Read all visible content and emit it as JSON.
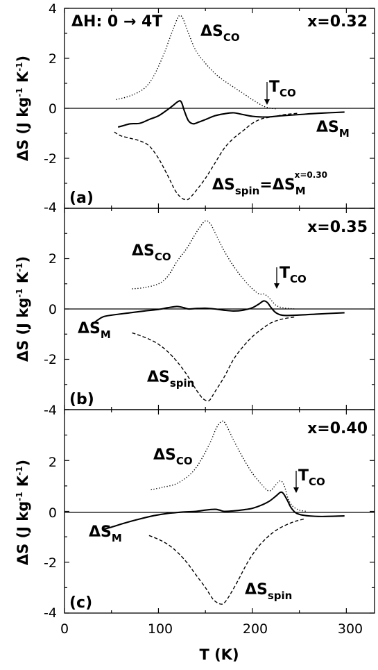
{
  "chart_data": [
    {
      "type": "line",
      "panel_label": "(a)",
      "composition": "x=0.32",
      "annotation": "ΔH: 0 → 4T",
      "xlim": [
        0,
        330
      ],
      "ylim": [
        -4,
        4
      ],
      "yticks": [
        4,
        2,
        0,
        -2,
        -4
      ],
      "ylabel": {
        "main": "ΔS (J kg",
        "exp1": "-1",
        "mid": " K",
        "exp2": "-1",
        "end": ")"
      },
      "series": [
        {
          "name": "ΔS_CO",
          "style": "dotted",
          "x": [
            55,
            70,
            85,
            95,
            105,
            112,
            118,
            122,
            126,
            132,
            140,
            150,
            160,
            170,
            180,
            190,
            200,
            210,
            215,
            220,
            225
          ],
          "y": [
            0.35,
            0.5,
            0.8,
            1.3,
            2.1,
            2.8,
            3.4,
            3.7,
            3.6,
            3.0,
            2.3,
            1.8,
            1.4,
            1.1,
            0.85,
            0.6,
            0.35,
            0.12,
            0.04,
            0.0,
            -0.02
          ]
        },
        {
          "name": "ΔS_M",
          "style": "solid",
          "x": [
            57,
            62,
            70,
            80,
            90,
            100,
            108,
            115,
            120,
            123,
            125,
            128,
            132,
            137,
            143,
            150,
            160,
            170,
            180,
            190,
            200,
            215,
            230,
            250,
            270,
            298
          ],
          "y": [
            -0.75,
            -0.7,
            -0.62,
            -0.6,
            -0.45,
            -0.3,
            -0.1,
            0.1,
            0.25,
            0.3,
            0.2,
            -0.15,
            -0.5,
            -0.62,
            -0.55,
            -0.45,
            -0.3,
            -0.22,
            -0.18,
            -0.25,
            -0.32,
            -0.35,
            -0.3,
            -0.25,
            -0.2,
            -0.15
          ]
        },
        {
          "name": "ΔS_spin",
          "style": "dashed",
          "x": [
            53,
            60,
            70,
            80,
            90,
            100,
            110,
            118,
            125,
            130,
            133,
            140,
            150,
            160,
            170,
            180,
            190,
            200,
            210,
            220,
            235,
            248
          ],
          "y": [
            -0.95,
            -1.1,
            -1.2,
            -1.3,
            -1.5,
            -2.0,
            -2.7,
            -3.3,
            -3.6,
            -3.65,
            -3.6,
            -3.3,
            -2.8,
            -2.2,
            -1.6,
            -1.2,
            -0.9,
            -0.6,
            -0.42,
            -0.35,
            -0.25,
            -0.2
          ]
        }
      ],
      "labels": {
        "sco": {
          "base": "ΔS",
          "sub": "CO"
        },
        "tco": {
          "base": "T",
          "sub": "CO"
        },
        "sm": {
          "base": "ΔS",
          "sub": "M"
        },
        "spin": {
          "base": "ΔS",
          "sub": "spin",
          "eq": "=ΔS",
          "sub2": "M",
          "sup2": "x=0.30"
        }
      },
      "tco_x": 213
    },
    {
      "type": "line",
      "panel_label": "(b)",
      "composition": "x=0.35",
      "xlim": [
        0,
        330
      ],
      "ylim": [
        -4,
        4
      ],
      "yticks": [
        2,
        0,
        -2,
        -4
      ],
      "ylabel": {
        "main": "ΔS (J kg",
        "exp1": "-1",
        "mid": " K",
        "exp2": "-1",
        "end": ")"
      },
      "series": [
        {
          "name": "ΔS_CO",
          "style": "dotted",
          "x": [
            72,
            85,
            100,
            110,
            120,
            130,
            138,
            145,
            150,
            155,
            162,
            170,
            180,
            190,
            200,
            207,
            212,
            216,
            220,
            225,
            232,
            245
          ],
          "y": [
            0.8,
            0.85,
            1.0,
            1.3,
            1.9,
            2.4,
            2.9,
            3.3,
            3.5,
            3.4,
            2.9,
            2.3,
            1.7,
            1.2,
            0.8,
            0.6,
            0.6,
            0.5,
            0.35,
            0.15,
            0.05,
            0.0
          ]
        },
        {
          "name": "ΔS_M",
          "style": "solid",
          "x": [
            30,
            35,
            42,
            55,
            70,
            85,
            100,
            110,
            120,
            127,
            132,
            140,
            150,
            160,
            170,
            180,
            190,
            200,
            207,
            212,
            216,
            220,
            225,
            232,
            245,
            270,
            298
          ],
          "y": [
            -0.6,
            -0.45,
            -0.3,
            -0.22,
            -0.15,
            -0.08,
            -0.02,
            0.05,
            0.1,
            0.05,
            0.0,
            0.02,
            0.03,
            0.0,
            -0.05,
            -0.08,
            -0.05,
            0.05,
            0.2,
            0.32,
            0.25,
            0.05,
            -0.15,
            -0.25,
            -0.25,
            -0.2,
            -0.15
          ]
        },
        {
          "name": "ΔS_spin",
          "style": "dashed",
          "x": [
            72,
            80,
            90,
            100,
            110,
            120,
            130,
            140,
            147,
            152,
            155,
            160,
            170,
            180,
            190,
            200,
            210,
            220,
            232,
            245
          ],
          "y": [
            -0.95,
            -1.05,
            -1.2,
            -1.4,
            -1.7,
            -2.1,
            -2.6,
            -3.2,
            -3.55,
            -3.65,
            -3.6,
            -3.3,
            -2.7,
            -2.0,
            -1.5,
            -1.1,
            -0.8,
            -0.55,
            -0.4,
            -0.32
          ]
        }
      ],
      "labels": {
        "sco": {
          "base": "ΔS",
          "sub": "CO"
        },
        "tco": {
          "base": "T",
          "sub": "CO"
        },
        "sm": {
          "base": "ΔS",
          "sub": "M"
        },
        "spin": {
          "base": "ΔS",
          "sub": "spin"
        }
      },
      "tco_x": 225
    },
    {
      "type": "line",
      "panel_label": "(c)",
      "composition": "x=0.40",
      "xlim": [
        0,
        330
      ],
      "ylim": [
        -4,
        4
      ],
      "yticks": [
        2,
        0,
        -2,
        -4
      ],
      "ylabel": {
        "main": "ΔS (J kg",
        "exp1": "-1",
        "mid": " K",
        "exp2": "-1",
        "end": ")"
      },
      "xlabel": "T (K)",
      "xticks": [
        0,
        100,
        200,
        300
      ],
      "series": [
        {
          "name": "ΔS_CO",
          "style": "dotted",
          "x": [
            92,
            105,
            120,
            135,
            145,
            155,
            162,
            168,
            172,
            180,
            190,
            200,
            210,
            218,
            225,
            230,
            234,
            238,
            243,
            250,
            258
          ],
          "y": [
            0.85,
            0.95,
            1.1,
            1.5,
            2.0,
            2.7,
            3.3,
            3.55,
            3.4,
            2.8,
            2.1,
            1.5,
            1.05,
            0.8,
            1.05,
            1.2,
            1.0,
            0.5,
            0.2,
            0.05,
            0.0
          ]
        },
        {
          "name": "ΔS_M",
          "style": "solid",
          "x": [
            42,
            50,
            65,
            80,
            95,
            110,
            125,
            140,
            150,
            160,
            165,
            170,
            180,
            190,
            200,
            210,
            218,
            225,
            230,
            233,
            237,
            242,
            250,
            270,
            298
          ],
          "y": [
            -0.7,
            -0.62,
            -0.45,
            -0.3,
            -0.17,
            -0.08,
            -0.03,
            0.0,
            0.05,
            0.08,
            0.05,
            0.0,
            0.02,
            0.06,
            0.12,
            0.25,
            0.4,
            0.6,
            0.75,
            0.7,
            0.45,
            0.1,
            -0.12,
            -0.2,
            -0.18
          ]
        },
        {
          "name": "ΔS_spin",
          "style": "dashed",
          "x": [
            90,
            100,
            110,
            120,
            130,
            140,
            150,
            158,
            163,
            167,
            170,
            175,
            185,
            195,
            205,
            215,
            225,
            235,
            245,
            255
          ],
          "y": [
            -0.95,
            -1.1,
            -1.3,
            -1.6,
            -2.0,
            -2.5,
            -3.0,
            -3.45,
            -3.6,
            -3.65,
            -3.6,
            -3.35,
            -2.7,
            -2.0,
            -1.45,
            -1.05,
            -0.75,
            -0.55,
            -0.4,
            -0.3
          ]
        }
      ],
      "labels": {
        "sco": {
          "base": "ΔS",
          "sub": "CO"
        },
        "tco": {
          "base": "T",
          "sub": "CO"
        },
        "sm": {
          "base": "ΔS",
          "sub": "M"
        },
        "spin": {
          "base": "ΔS",
          "sub": "spin"
        }
      },
      "tco_x": 242
    }
  ]
}
